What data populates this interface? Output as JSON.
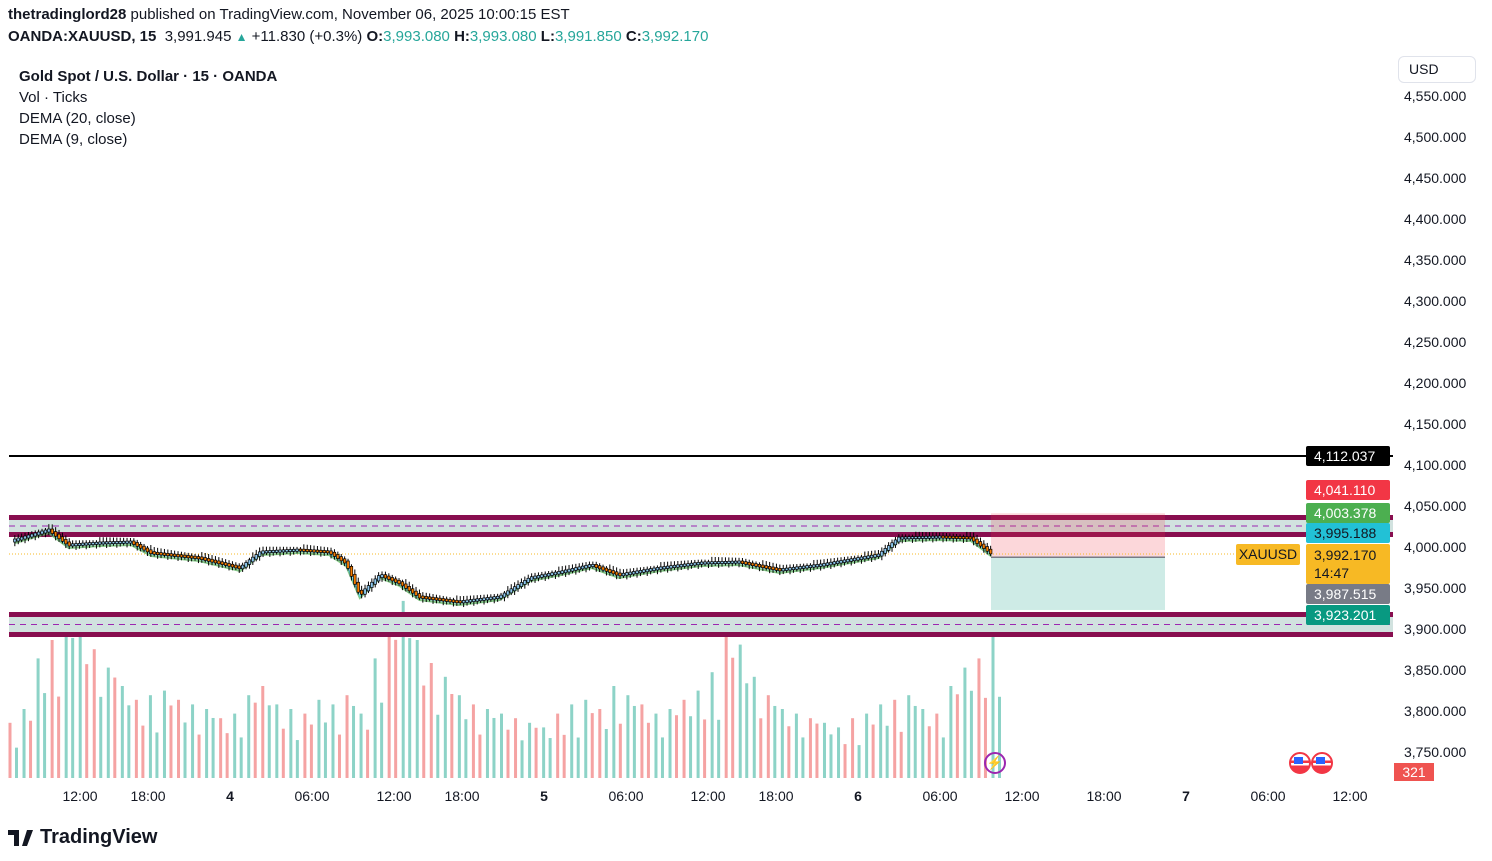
{
  "header": {
    "author": "thetradinglord28",
    "published": "published on TradingView.com, November 06, 2025 10:00:15 EST",
    "symbol": "OANDA:XAUUSD, 15",
    "last": "3,991.945",
    "change": "+11.830 (+0.3%)",
    "o_label": "O:",
    "o": "3,993.080",
    "h_label": "H:",
    "h": "3,993.080",
    "l_label": "L:",
    "l": "3,991.850",
    "c_label": "C:",
    "c": "3,992.170"
  },
  "legend": {
    "title": "Gold Spot / U.S. Dollar · 15 · OANDA",
    "vol": "Vol · Ticks",
    "dema20": "DEMA (20, close)",
    "dema9": "DEMA (9, close)"
  },
  "currency_button": "USD",
  "price_axis": {
    "ticks": [
      "4,550.000",
      "4,500.000",
      "4,450.000",
      "4,400.000",
      "4,350.000",
      "4,300.000",
      "4,250.000",
      "4,200.000",
      "4,150.000",
      "4,100.000",
      "4,050.000",
      "4,000.000",
      "3,950.000",
      "3,900.000",
      "3,850.000",
      "3,800.000",
      "3,750.000"
    ],
    "labels": {
      "hline": {
        "text": "4,112.037",
        "bg": "#000000",
        "fg": "#ffffff"
      },
      "stop": {
        "text": "4,041.110",
        "bg": "#f23645",
        "fg": "#ffffff"
      },
      "upper_zone": {
        "text": "4,003.378",
        "bg": "#4caf50",
        "fg": "#ffffff"
      },
      "dema": {
        "text": "3,995.188",
        "bg": "#22c1d6",
        "fg": "#131722"
      },
      "last_price": {
        "text": "3,992.170",
        "bg": "#f7b924",
        "fg": "#131722"
      },
      "countdown": "14:47",
      "entry": {
        "text": "3,987.515",
        "bg": "#787b86",
        "fg": "#ffffff"
      },
      "target": {
        "text": "3,923.201",
        "bg": "#089981",
        "fg": "#ffffff"
      }
    },
    "symbol_tag": "XAUUSD",
    "volume": "321"
  },
  "time_axis": [
    {
      "label": "12:00",
      "day": false
    },
    {
      "label": "18:00",
      "day": false
    },
    {
      "label": "4",
      "day": true
    },
    {
      "label": "06:00",
      "day": false
    },
    {
      "label": "12:00",
      "day": false
    },
    {
      "label": "18:00",
      "day": false
    },
    {
      "label": "5",
      "day": true
    },
    {
      "label": "06:00",
      "day": false
    },
    {
      "label": "12:00",
      "day": false
    },
    {
      "label": "18:00",
      "day": false
    },
    {
      "label": "6",
      "day": true
    },
    {
      "label": "06:00",
      "day": false
    },
    {
      "label": "12:00",
      "day": false
    },
    {
      "label": "18:00",
      "day": false
    },
    {
      "label": "7",
      "day": true
    },
    {
      "label": "06:00",
      "day": false
    },
    {
      "label": "12:00",
      "day": false
    }
  ],
  "colors": {
    "zone_border": "#880e4f",
    "zone_fill": "#d1e2df",
    "zone_mid": "#9c27b0",
    "candle_up": "#8fc9f0",
    "candle_down": "#f57c00",
    "dema20": "#66bb6a",
    "dema9": "#4dd0e1",
    "vol_up": "#8dd3c7",
    "vol_down": "#f5a3a3",
    "last_line": "#f7b924",
    "stop_fill": "#f8d7da",
    "target_fill": "#d0ebe6"
  },
  "chart_data": {
    "type": "line",
    "symbol": "XAUUSD",
    "ylim": [
      3730,
      4560
    ],
    "levels": {
      "horizontal_line": 4112.037,
      "upper_zone": [
        3994,
        4012
      ],
      "lower_zone": [
        3900,
        3923.2
      ],
      "position": {
        "entry": 3987.515,
        "stop": 4041.11,
        "target": 3923.201
      }
    },
    "series": [
      {
        "x": [
          "11-03 06:15",
          "11-03 09:15",
          "11-03 11:00",
          "11-03 13:45",
          "11-03 16:30",
          "11-03 18:15",
          "11-03 21:45",
          "11-04 00:45",
          "11-04 02:15",
          "11-04 05:00",
          "11-04 07:15",
          "11-04 08:30",
          "11-04 09:30",
          "11-04 11:00",
          "11-04 12:30",
          "11-04 14:15",
          "11-04 17:45",
          "11-04 20:45",
          "11-04 23:00",
          "11-05 01:15",
          "11-05 03:30",
          "11-05 05:30",
          "11-05 08:30",
          "11-05 11:30",
          "11-05 14:45",
          "11-05 18:15",
          "11-05 21:15",
          "11-06 00:15",
          "11-06 01:30",
          "11-06 03:00",
          "11-06 06:00",
          "11-06 08:15",
          "11-06 09:15",
          "11-06 09:45"
        ],
        "close": [
          4008.5,
          4020.7,
          4002.4,
          4004.9,
          4006.1,
          3992.7,
          3986.6,
          3974.4,
          3993.9,
          3996.3,
          3993.9,
          3980.5,
          3941.5,
          3965.9,
          3956.1,
          3939.0,
          3932.9,
          3939.0,
          3962.2,
          3969.5,
          3978.0,
          3965.9,
          3974.4,
          3980.5,
          3981.7,
          3972.0,
          3978.0,
          3986.6,
          3990.2,
          4011.0,
          4012.2,
          4011.0,
          3998.8,
          3992.2
        ]
      }
    ],
    "volume": [
      120,
      150,
      260,
      300,
      350,
      330,
      280,
      240,
      200,
      170,
      180,
      190,
      170,
      160,
      150,
      130,
      140,
      180,
      200,
      160,
      150,
      140,
      170,
      160,
      180,
      140,
      260,
      330,
      385,
      300,
      250,
      220,
      180,
      160,
      150,
      140,
      130,
      120,
      110,
      140,
      160,
      170,
      150,
      200,
      180,
      160,
      140,
      150,
      170,
      190,
      230,
      315,
      290,
      220,
      180,
      150,
      140,
      130,
      120,
      110,
      130,
      140,
      160,
      170,
      180,
      150,
      140,
      200,
      240,
      260,
      321
    ]
  }
}
